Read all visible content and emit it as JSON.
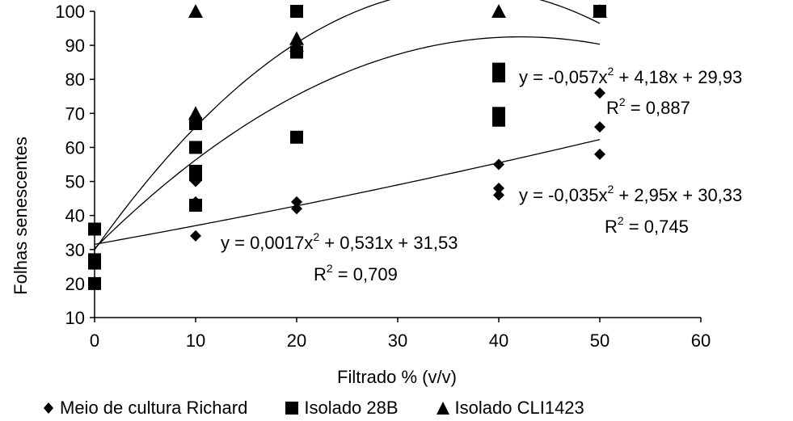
{
  "chart_data": {
    "type": "scatter",
    "xlabel": "Filtrado % (v/v)",
    "ylabel": "Folhas senescentes",
    "xlim": [
      0,
      60
    ],
    "ylim": [
      10,
      100
    ],
    "xticks": [
      0,
      10,
      20,
      30,
      40,
      50,
      60
    ],
    "yticks": [
      10,
      20,
      30,
      40,
      50,
      60,
      70,
      80,
      90,
      100
    ],
    "grid": false,
    "legend_position": "bottom",
    "series": [
      {
        "name": "Meio de cultura Richard",
        "marker": "diamond",
        "color": "#000000",
        "x": [
          0,
          10,
          10,
          10,
          20,
          20,
          40,
          40,
          40,
          50,
          50,
          50
        ],
        "y": [
          26,
          34,
          44,
          50,
          42,
          44,
          46,
          48,
          55,
          58,
          66,
          76
        ],
        "trendline": {
          "a": 0.0017,
          "b": 0.531,
          "c": 31.53,
          "equation": "y = 0,0017x² + 0,531x + 31,53",
          "r2": "R² = 0,709"
        }
      },
      {
        "name": "Isolado 28B",
        "marker": "square",
        "color": "#000000",
        "x": [
          0,
          0,
          0,
          0,
          10,
          10,
          10,
          10,
          10,
          20,
          20,
          20,
          40,
          40,
          40,
          40,
          50
        ],
        "y": [
          20,
          26,
          27,
          36,
          43,
          52,
          53,
          60,
          67,
          63,
          88,
          100,
          68,
          70,
          81,
          83,
          100
        ],
        "trendline": {
          "a": -0.035,
          "b": 2.95,
          "c": 30.33,
          "equation": "y = -0,035x² + 2,95x + 30,33",
          "r2": "R² = 0,745"
        }
      },
      {
        "name": "Isolado CLI1423",
        "marker": "triangle",
        "color": "#000000",
        "x": [
          10,
          10,
          20,
          20,
          40,
          50
        ],
        "y": [
          70,
          100,
          90,
          92,
          100,
          100
        ],
        "trendline": {
          "a": -0.057,
          "b": 4.18,
          "c": 29.93,
          "equation": "y = -0,057x² + 4,18x + 29,93",
          "r2": "R² = 0,887"
        }
      }
    ]
  },
  "legend": {
    "items": [
      {
        "label": "Meio de cultura Richard",
        "icon": "diamond"
      },
      {
        "label": "Isolado 28B",
        "icon": "square"
      },
      {
        "label": "Isolado CLI1423",
        "icon": "triangle"
      }
    ]
  },
  "annotations": {
    "cli1423_eq_pre": "y = -0,057x",
    "cli1423_eq_post": " + 4,18x + 29,93",
    "cli1423_r2_pre": "R",
    "cli1423_r2_post": " = 0,887",
    "isolado28b_eq_pre": "y = -0,035x",
    "isolado28b_eq_post": " + 2,95x + 30,33",
    "isolado28b_r2_pre": "R",
    "isolado28b_r2_post": " = 0,745",
    "richard_eq_pre": "y = 0,0017x",
    "richard_eq_post": " + 0,531x + 31,53",
    "richard_r2_pre": "R",
    "richard_r2_post": " = 0,709",
    "superscript": "2"
  }
}
